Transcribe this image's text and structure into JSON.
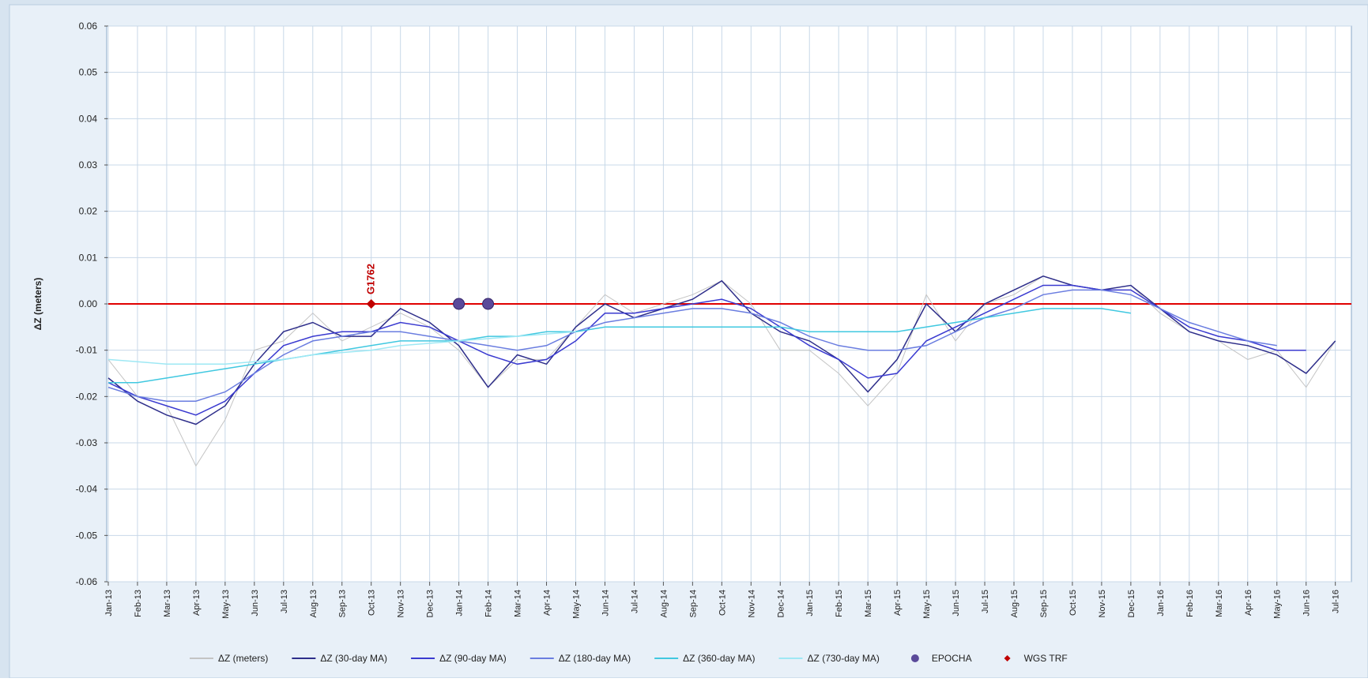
{
  "chart_data": {
    "type": "line",
    "y_label": "ΔZ (meters)",
    "categories": [
      "Jan-13",
      "Feb-13",
      "Mar-13",
      "Apr-13",
      "May-13",
      "Jun-13",
      "Jul-13",
      "Aug-13",
      "Sep-13",
      "Oct-13",
      "Nov-13",
      "Dec-13",
      "Jan-14",
      "Feb-14",
      "Mar-14",
      "Apr-14",
      "May-14",
      "Jun-14",
      "Jul-14",
      "Aug-14",
      "Sep-14",
      "Oct-14",
      "Nov-14",
      "Dec-14",
      "Jan-15",
      "Feb-15",
      "Mar-15",
      "Apr-15",
      "May-15",
      "Jun-15",
      "Jul-15",
      "Aug-15",
      "Sep-15",
      "Oct-15",
      "Nov-15",
      "Dec-15",
      "Jan-16",
      "Feb-16",
      "Mar-16",
      "Apr-16",
      "May-16",
      "Jun-16",
      "Jul-16"
    ],
    "ylim": [
      -0.06,
      0.06
    ],
    "yticks": [
      -0.06,
      -0.05,
      -0.04,
      -0.03,
      -0.02,
      -0.01,
      {
        "value": 0,
        "label": "0.00"
      },
      0.01,
      0.02,
      0.03,
      0.04,
      0.05,
      0.06
    ],
    "grid": true,
    "legend": "bottom",
    "hline": {
      "value": 0,
      "color": "#e00000"
    },
    "series": [
      {
        "name": "ΔZ (meters)",
        "color": "#c4c4c4",
        "values": [
          -0.012,
          -0.02,
          -0.022,
          -0.035,
          -0.025,
          -0.01,
          -0.008,
          -0.002,
          -0.008,
          -0.005,
          -0.002,
          -0.005,
          -0.01,
          -0.018,
          -0.012,
          -0.012,
          -0.005,
          0.002,
          -0.002,
          0,
          0.002,
          0.005,
          0,
          -0.01,
          -0.01,
          -0.015,
          -0.022,
          -0.015,
          0.002,
          -0.008,
          0,
          0.002,
          0.006,
          0.004,
          0.003,
          0.004,
          -0.002,
          -0.006,
          -0.008,
          -0.012,
          -0.01,
          -0.018,
          -0.008
        ]
      },
      {
        "name": "ΔZ (30-day MA)",
        "color": "#2e2e8a",
        "values": [
          -0.016,
          -0.021,
          -0.024,
          -0.026,
          -0.022,
          -0.013,
          -0.006,
          -0.004,
          -0.007,
          -0.007,
          -0.001,
          -0.004,
          -0.009,
          -0.018,
          -0.011,
          -0.013,
          -0.005,
          0,
          -0.003,
          -0.001,
          0.001,
          0.005,
          -0.002,
          -0.006,
          -0.008,
          -0.012,
          -0.019,
          -0.012,
          0,
          -0.006,
          0,
          0.003,
          0.006,
          0.004,
          0.003,
          0.004,
          -0.001,
          -0.006,
          -0.008,
          -0.009,
          -0.011,
          -0.015,
          -0.008
        ]
      },
      {
        "name": "ΔZ (90-day MA)",
        "color": "#3a3ad0",
        "values": [
          -0.017,
          -0.02,
          -0.022,
          -0.024,
          -0.021,
          -0.015,
          -0.009,
          -0.007,
          -0.006,
          -0.006,
          -0.004,
          -0.005,
          -0.008,
          -0.011,
          -0.013,
          -0.012,
          -0.008,
          -0.002,
          -0.002,
          -0.001,
          0,
          0.001,
          -0.001,
          -0.005,
          -0.009,
          -0.012,
          -0.016,
          -0.015,
          -0.008,
          -0.005,
          -0.002,
          0.001,
          0.004,
          0.004,
          0.003,
          0.003,
          -0.001,
          -0.005,
          -0.007,
          -0.008,
          -0.01,
          -0.01,
          null
        ]
      },
      {
        "name": "ΔZ (180-day MA)",
        "color": "#6a7de0",
        "values": [
          -0.018,
          -0.02,
          -0.021,
          -0.021,
          -0.019,
          -0.015,
          -0.011,
          -0.008,
          -0.007,
          -0.006,
          -0.006,
          -0.007,
          -0.008,
          -0.009,
          -0.01,
          -0.009,
          -0.006,
          -0.004,
          -0.003,
          -0.002,
          -0.001,
          -0.001,
          -0.002,
          -0.004,
          -0.007,
          -0.009,
          -0.01,
          -0.01,
          -0.009,
          -0.006,
          -0.003,
          -0.001,
          0.002,
          0.003,
          0.003,
          0.002,
          -0.001,
          -0.004,
          -0.006,
          -0.008,
          -0.009,
          null,
          null
        ]
      },
      {
        "name": "ΔZ (360-day MA)",
        "color": "#40c8e0",
        "values": [
          -0.017,
          -0.017,
          -0.016,
          -0.015,
          -0.014,
          -0.013,
          -0.012,
          -0.011,
          -0.01,
          -0.009,
          -0.008,
          -0.008,
          -0.008,
          -0.007,
          -0.007,
          -0.006,
          -0.006,
          -0.005,
          -0.005,
          -0.005,
          -0.005,
          -0.005,
          -0.005,
          -0.005,
          -0.006,
          -0.006,
          -0.006,
          -0.006,
          -0.005,
          -0.004,
          -0.003,
          -0.002,
          -0.001,
          -0.001,
          -0.001,
          -0.002,
          null,
          null,
          null,
          null,
          null,
          null,
          null
        ]
      },
      {
        "name": "ΔZ (730-day MA)",
        "color": "#9ee8f4",
        "values": [
          -0.012,
          -0.0125,
          -0.013,
          -0.013,
          -0.013,
          -0.0125,
          -0.012,
          -0.011,
          -0.0105,
          -0.01,
          -0.009,
          -0.0085,
          -0.008,
          -0.0075,
          -0.007,
          -0.0065,
          -0.006,
          null,
          null,
          null,
          null,
          null,
          null,
          null,
          null,
          null,
          null,
          null,
          null,
          null,
          null,
          null,
          null,
          null,
          null,
          null,
          null,
          null,
          null,
          null,
          null,
          null,
          null
        ]
      },
      {
        "name": "EPOCHA",
        "color": "#5a4a9a",
        "marker": "circle",
        "values": [
          null,
          null,
          null,
          null,
          null,
          null,
          null,
          null,
          null,
          null,
          null,
          null,
          0,
          0,
          null,
          null,
          null,
          null,
          null,
          null,
          null,
          null,
          null,
          null,
          null,
          null,
          null,
          null,
          null,
          null,
          null,
          null,
          null,
          null,
          null,
          null,
          null,
          null,
          null,
          null,
          null,
          null,
          null
        ]
      },
      {
        "name": "WGS TRF",
        "color": "#c00000",
        "marker": "diamond",
        "values": [
          null,
          null,
          null,
          null,
          null,
          null,
          null,
          null,
          null,
          0,
          null,
          null,
          null,
          null,
          null,
          null,
          null,
          null,
          null,
          null,
          null,
          null,
          null,
          null,
          null,
          null,
          null,
          null,
          null,
          null,
          null,
          null,
          null,
          null,
          null,
          null,
          null,
          null,
          null,
          null,
          null,
          null,
          null
        ],
        "annotation": "G1762"
      }
    ]
  }
}
